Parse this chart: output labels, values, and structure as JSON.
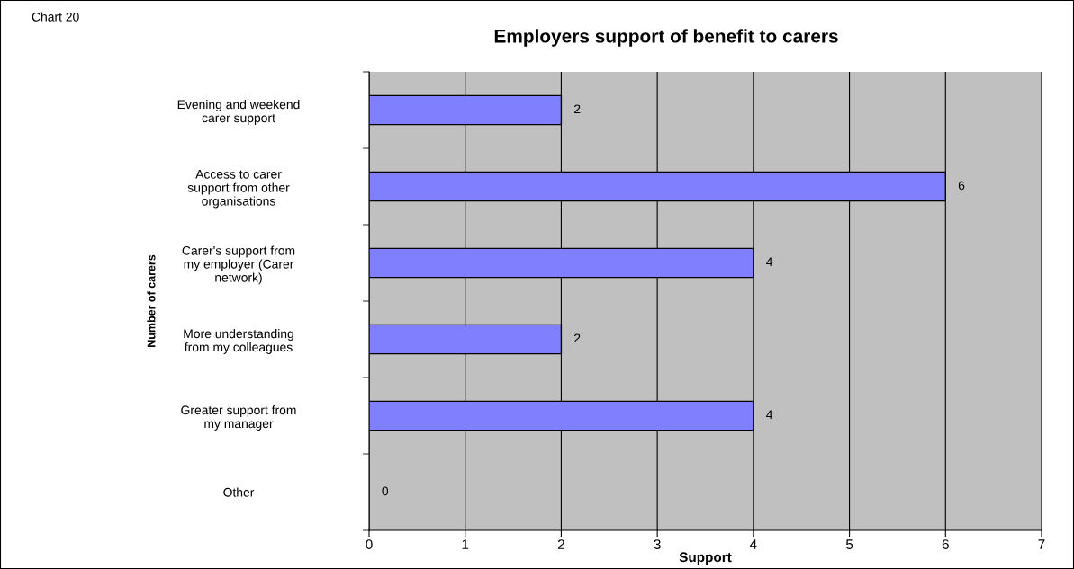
{
  "chart_data": {
    "type": "bar",
    "orientation": "horizontal",
    "title": "Employers support of benefit to carers",
    "xlabel": "Support",
    "ylabel": "Number of carers",
    "annotations": [
      "Chart 20"
    ],
    "categories": [
      "Evening and weekend\ncarer support",
      "Access to carer\nsupport from other\norganisations",
      "Carer's support from\nmy employer (Carer\nnetwork)",
      "More understanding\nfrom my colleagues",
      "Greater support from\nmy manager",
      "Other"
    ],
    "values": [
      2,
      6,
      4,
      2,
      4,
      0
    ],
    "color": "#8080ff",
    "xlim": [
      0,
      7
    ],
    "xticks": [
      0,
      1,
      2,
      3,
      4,
      5,
      6,
      7
    ],
    "grid": "x",
    "data_labels": true,
    "legend": false
  }
}
